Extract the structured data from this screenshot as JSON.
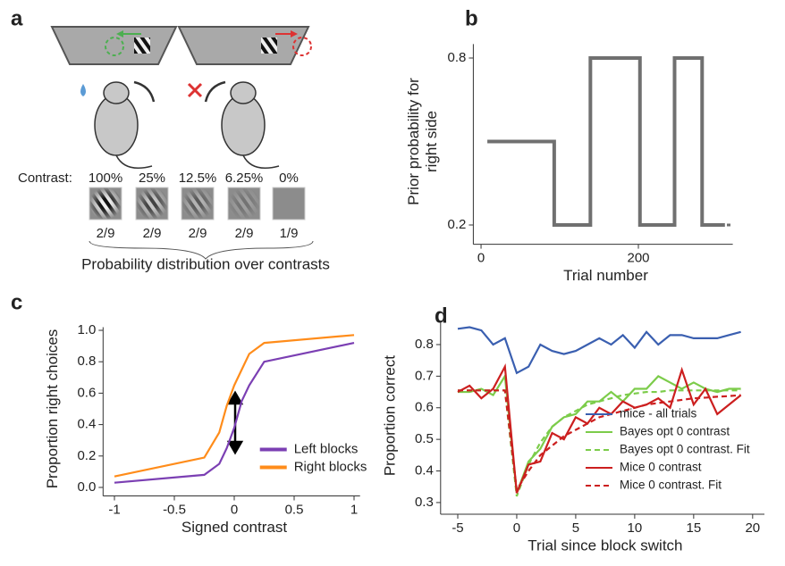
{
  "panel_a": {
    "label": "a",
    "contrast_label": "Contrast:",
    "contrasts": [
      "100%",
      "25%",
      "12.5%",
      "6.25%",
      "0%"
    ],
    "probabilities": [
      "2/9",
      "2/9",
      "2/9",
      "2/9",
      "1/9"
    ],
    "caption": "Probability distribution over contrasts"
  },
  "chart_data": [
    {
      "type": "line",
      "panel": "b",
      "xlabel": "Trial number",
      "ylabel": [
        "Prior probability for",
        "right side"
      ],
      "x": [
        8,
        93,
        93,
        139,
        139,
        202,
        202,
        246,
        246,
        281,
        281,
        310
      ],
      "series": [
        {
          "color": "#707070",
          "values": [
            0.5,
            0.5,
            0.2,
            0.2,
            0.8,
            0.8,
            0.2,
            0.2,
            0.8,
            0.8,
            0.2,
            0.2
          ]
        }
      ],
      "xlim": [
        -3,
        320
      ],
      "ylim": [
        0.15,
        0.85
      ],
      "xticks": [
        0,
        200
      ],
      "yticks": [
        0.2,
        0.8
      ]
    },
    {
      "type": "line",
      "panel": "c",
      "xlabel": "Signed contrast",
      "ylabel": [
        "Proportion right choices"
      ],
      "x": [
        -1,
        -0.25,
        -0.125,
        -0.0625,
        0,
        0.0625,
        0.125,
        0.25,
        1
      ],
      "series": [
        {
          "name": "Left blocks",
          "color": "#7b3fb3",
          "values": [
            0.03,
            0.08,
            0.15,
            0.25,
            0.38,
            0.55,
            0.65,
            0.8,
            0.92
          ]
        },
        {
          "name": "Right blocks",
          "color": "#ff8c1a",
          "values": [
            0.07,
            0.19,
            0.35,
            0.52,
            0.65,
            0.75,
            0.85,
            0.92,
            0.97
          ]
        }
      ],
      "xlim": [
        -1.05,
        1.05
      ],
      "ylim": [
        -0.02,
        1.02
      ],
      "xticks": [
        -1,
        -0.5,
        0,
        0.5,
        1
      ],
      "yticks": [
        {
          "value": 0,
          "label": "0.0"
        },
        0.2,
        0.4,
        0.6,
        0.8,
        {
          "value": 1,
          "label": "1.0"
        }
      ],
      "legend": "lower right"
    },
    {
      "type": "line",
      "panel": "d",
      "xlabel": "Trial since block switch",
      "ylabel": [
        "Proportion correct"
      ],
      "x": [
        -5,
        -4,
        -3,
        -2,
        -1,
        0,
        1,
        2,
        3,
        4,
        5,
        6,
        7,
        8,
        9,
        10,
        11,
        12,
        13,
        14,
        15,
        16,
        17,
        18,
        19
      ],
      "series": [
        {
          "name": "mice - all trials",
          "color": "#3a5fb0",
          "linestyle": "solid",
          "values": [
            0.85,
            0.855,
            0.845,
            0.8,
            0.82,
            0.71,
            0.73,
            0.8,
            0.78,
            0.77,
            0.78,
            0.8,
            0.82,
            0.8,
            0.83,
            0.79,
            0.84,
            0.8,
            0.83,
            0.83,
            0.82,
            0.82,
            0.82,
            0.83,
            0.84
          ]
        },
        {
          "name": "Bayes opt 0 contrast",
          "color": "#7ccc4a",
          "linestyle": "solid",
          "values": [
            0.65,
            0.65,
            0.66,
            0.64,
            0.7,
            0.33,
            0.43,
            0.47,
            0.54,
            0.57,
            0.58,
            0.62,
            0.62,
            0.65,
            0.62,
            0.66,
            0.66,
            0.7,
            0.68,
            0.66,
            0.68,
            0.66,
            0.65,
            0.66,
            0.66
          ]
        },
        {
          "name": "Bayes opt 0 contrast. Fit",
          "color": "#7ccc4a",
          "linestyle": "dashed",
          "values": [
            0.655,
            0.655,
            0.655,
            0.655,
            0.655,
            0.32,
            0.42,
            0.49,
            0.54,
            0.57,
            0.59,
            0.61,
            0.62,
            0.63,
            0.64,
            0.645,
            0.65,
            0.65,
            0.655,
            0.655,
            0.655,
            0.655,
            0.655,
            0.655,
            0.655
          ]
        },
        {
          "name": "Mice 0 contrast",
          "color": "#cc1f1f",
          "linestyle": "solid",
          "values": [
            0.65,
            0.67,
            0.63,
            0.66,
            0.73,
            0.33,
            0.42,
            0.43,
            0.52,
            0.5,
            0.57,
            0.55,
            0.6,
            0.58,
            0.62,
            0.6,
            0.61,
            0.63,
            0.6,
            0.72,
            0.61,
            0.66,
            0.58,
            0.61,
            0.64
          ]
        },
        {
          "name": "Mice 0 contrast. Fit",
          "color": "#cc1f1f",
          "linestyle": "dashed",
          "values": [
            0.655,
            0.655,
            0.655,
            0.655,
            0.655,
            0.34,
            0.4,
            0.45,
            0.48,
            0.51,
            0.53,
            0.55,
            0.57,
            0.58,
            0.59,
            0.6,
            0.61,
            0.615,
            0.62,
            0.625,
            0.63,
            0.632,
            0.635,
            0.637,
            0.64
          ]
        }
      ],
      "xlim": [
        -6,
        21
      ],
      "ylim": [
        0.28,
        0.87
      ],
      "xticks": [
        -5,
        0,
        5,
        10,
        15,
        20
      ],
      "yticks": [
        0.3,
        0.4,
        0.5,
        0.6,
        0.7,
        0.8
      ],
      "legend": "lower right"
    }
  ]
}
